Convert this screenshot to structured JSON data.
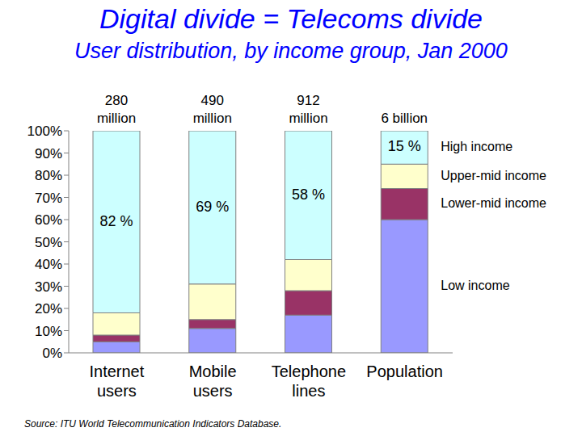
{
  "chart_data": {
    "type": "bar",
    "title": "Digital divide = Telecoms divide",
    "subtitle": "User distribution, by income group, Jan 2000",
    "source": "Source: ITU World Telecommunication Indicators Database.",
    "categories": [
      "Internet users",
      "Mobile users",
      "Telephone lines",
      "Population"
    ],
    "annotations": [
      "280 million",
      "490 million",
      "912 million",
      "6 billion"
    ],
    "stacked": true,
    "grid": false,
    "ylim": [
      0,
      100
    ],
    "yticks": [
      {
        "value": 0,
        "label": "0%"
      },
      {
        "value": 10,
        "label": "10%"
      },
      {
        "value": 20,
        "label": "20%"
      },
      {
        "value": 30,
        "label": "30%"
      },
      {
        "value": 40,
        "label": "40%"
      },
      {
        "value": 50,
        "label": "50%"
      },
      {
        "value": 60,
        "label": "60%"
      },
      {
        "value": 70,
        "label": "70%"
      },
      {
        "value": 80,
        "label": "80%"
      },
      {
        "value": 90,
        "label": "90%"
      },
      {
        "value": 100,
        "label": "100%"
      }
    ],
    "series": [
      {
        "name": "Low income",
        "color": "#9999ff",
        "values": [
          5,
          11,
          17,
          60
        ]
      },
      {
        "name": "Lower-mid income",
        "color": "#993366",
        "values": [
          3,
          4,
          11,
          14
        ]
      },
      {
        "name": "Upper-mid income",
        "color": "#ffffcc",
        "values": [
          10,
          16,
          14,
          11
        ]
      },
      {
        "name": "High income",
        "color": "#ccffff",
        "values": [
          82,
          69,
          58,
          15
        ],
        "data_labels": true,
        "value_labels": [
          "82 %",
          "69 %",
          "58 %",
          "15 %"
        ]
      }
    ]
  }
}
